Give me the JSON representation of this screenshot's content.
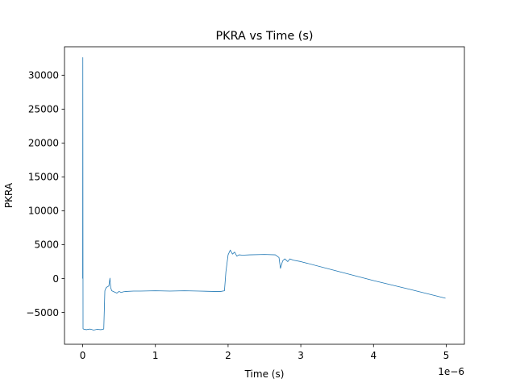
{
  "chart_data": {
    "type": "line",
    "title": "PKRA vs Time (s)",
    "xlabel": "Time (s)",
    "ylabel": "PKRA",
    "x_offset_label": "1e−6",
    "xlim": [
      -2.5e-07,
      5.25e-06
    ],
    "ylim": [
      -9700,
      34200
    ],
    "x_ticks": [
      0,
      1e-06,
      2e-06,
      3e-06,
      4e-06,
      5e-06
    ],
    "x_tick_labels": [
      "0",
      "1",
      "2",
      "3",
      "4",
      "5"
    ],
    "y_ticks": [
      -5000,
      0,
      5000,
      10000,
      15000,
      20000,
      25000,
      30000
    ],
    "y_tick_labels": [
      "−5000",
      "0",
      "5000",
      "10000",
      "15000",
      "20000",
      "25000",
      "30000"
    ],
    "grid": false,
    "series_color": "#1f77b4",
    "series": [
      {
        "x": [
          0,
          2e-09,
          5e-09,
          1e-08,
          5e-08,
          1e-07,
          1.5e-07,
          2e-07,
          2.5e-07,
          2.9e-07,
          3.05e-07,
          3.2e-07,
          3.4e-07,
          3.6e-07,
          3.75e-07,
          3.85e-07,
          4e-07,
          4.3e-07,
          4.7e-07,
          5e-07,
          5.3e-07,
          5.6e-07,
          6e-07,
          7e-07,
          8e-07,
          1e-06,
          1.2e-06,
          1.4e-06,
          1.6e-06,
          1.8e-06,
          1.9e-06,
          1.95e-06,
          1.97e-06,
          2e-06,
          2.03e-06,
          2.06e-06,
          2.09e-06,
          2.12e-06,
          2.15e-06,
          2.2e-06,
          2.3e-06,
          2.5e-06,
          2.65e-06,
          2.7e-06,
          2.72e-06,
          2.75e-06,
          2.78e-06,
          2.82e-06,
          2.85e-06,
          2.9e-06,
          3e-06,
          3.5e-06,
          4e-06,
          4.5e-06,
          4.99e-06
        ],
        "y": [
          0,
          32600,
          -7400,
          -7450,
          -7550,
          -7450,
          -7600,
          -7500,
          -7550,
          -7450,
          -1800,
          -1400,
          -1200,
          -1100,
          50,
          -1350,
          -1800,
          -1950,
          -2150,
          -1900,
          -2050,
          -1950,
          -1900,
          -1850,
          -1850,
          -1800,
          -1850,
          -1800,
          -1850,
          -1900,
          -1900,
          -1800,
          1000,
          3500,
          4200,
          3600,
          3900,
          3300,
          3500,
          3450,
          3500,
          3550,
          3500,
          3100,
          1500,
          2600,
          2900,
          2500,
          2900,
          2700,
          2500,
          1100,
          -300,
          -1600,
          -2900
        ]
      }
    ]
  }
}
